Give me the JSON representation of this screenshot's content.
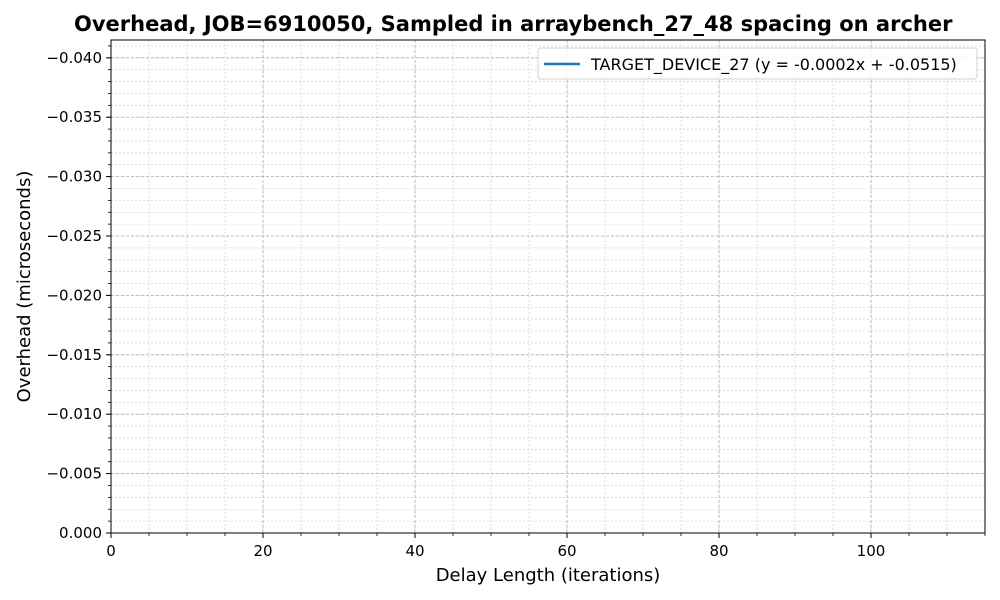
{
  "chart_data": {
    "type": "line",
    "title": "Overhead, JOB=6910050, Sampled in arraybench_27_48 spacing on archer",
    "xlabel": "Delay Length (iterations)",
    "ylabel": "Overhead (microseconds)",
    "xlim": [
      0,
      115
    ],
    "ylim": [
      0.0,
      -0.0415
    ],
    "y_inverted": true,
    "x_ticks": [
      0,
      20,
      40,
      60,
      80,
      100
    ],
    "x_tick_labels": [
      "0",
      "20",
      "40",
      "60",
      "80",
      "100"
    ],
    "y_ticks": [
      0.0,
      -0.005,
      -0.01,
      -0.015,
      -0.02,
      -0.025,
      -0.03,
      -0.035,
      -0.04
    ],
    "y_tick_labels": [
      "0.000",
      "−0.005",
      "−0.010",
      "−0.015",
      "−0.020",
      "−0.025",
      "−0.030",
      "−0.035",
      "−0.040"
    ],
    "grid": true,
    "minor_grid": true,
    "legend_position": "top-right",
    "series": [
      {
        "name": "TARGET_DEVICE_27 (y = -0.0002x + -0.0515)",
        "color": "#1f77b4",
        "x": [],
        "y": []
      }
    ]
  }
}
